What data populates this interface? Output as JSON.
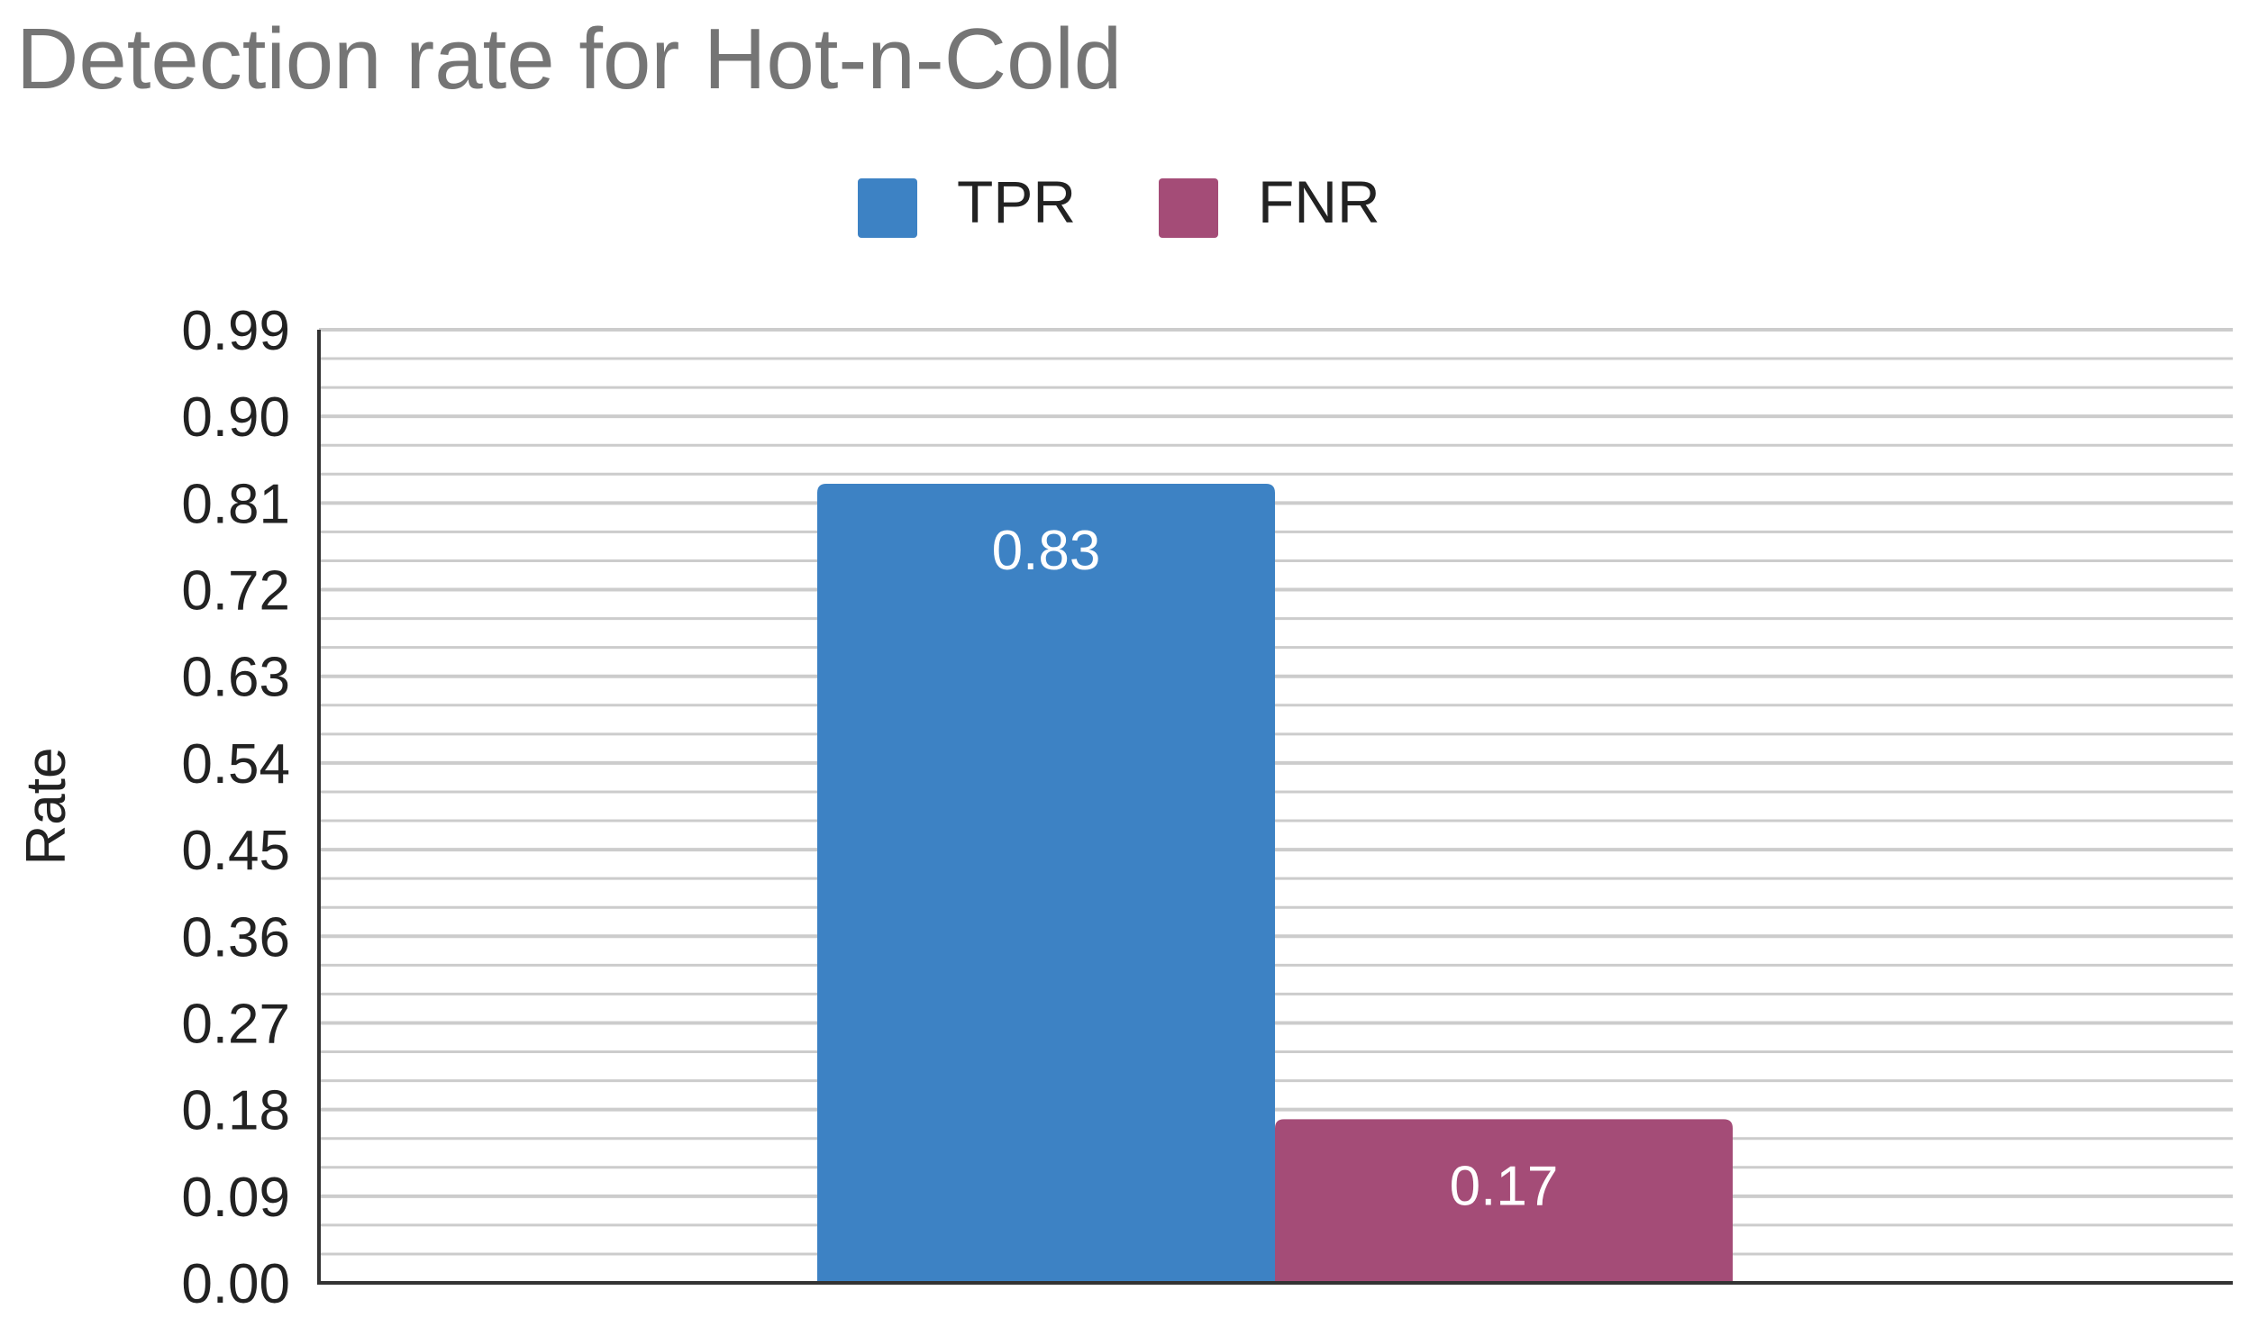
{
  "chart_data": {
    "type": "bar",
    "title": "Detection rate for Hot-n-Cold",
    "xlabel": "",
    "ylabel": "Rate",
    "categories": [
      ""
    ],
    "series": [
      {
        "name": "TPR",
        "values": [
          0.83
        ],
        "color": "#3d82c4"
      },
      {
        "name": "FNR",
        "values": [
          0.17
        ],
        "color": "#a44c77"
      }
    ],
    "data_labels": [
      "0.83",
      "0.17"
    ],
    "ylim": [
      0,
      0.99
    ],
    "yticks": [
      "0.00",
      "0.09",
      "0.18",
      "0.27",
      "0.36",
      "0.45",
      "0.54",
      "0.63",
      "0.72",
      "0.81",
      "0.90",
      "0.99"
    ],
    "minor_gridlines_per_major": 2,
    "grid": true,
    "legend_position": "top-center"
  }
}
